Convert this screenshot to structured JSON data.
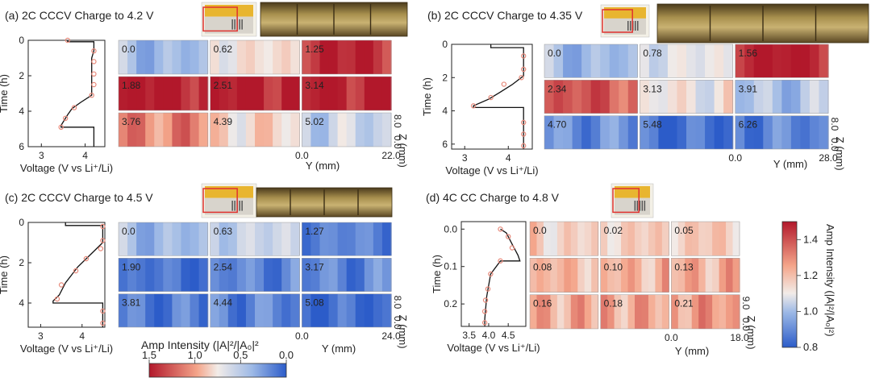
{
  "chart_data": [
    {
      "type": "heatmap",
      "id": "a",
      "title": "(a) 2C CCCV Charge to 4.2 V",
      "curve_ylabel": "Time (h)",
      "curve_xlabel": "Voltage (V vs Li⁺/Li)",
      "curve_xticks": [
        "3",
        "4"
      ],
      "curve_yticks": [
        "0",
        "2",
        "4",
        "6"
      ],
      "curve_xlim": [
        2.7,
        4.45
      ],
      "curve_ylim": [
        0,
        6
      ],
      "curve": [
        [
          3.6,
          0.0
        ],
        [
          3.6,
          0.08
        ],
        [
          4.2,
          0.08
        ],
        [
          4.2,
          0.6
        ],
        [
          4.15,
          1.0
        ],
        [
          4.15,
          3.1
        ],
        [
          3.9,
          3.5
        ],
        [
          3.7,
          3.85
        ],
        [
          3.6,
          4.2
        ],
        [
          3.45,
          4.8
        ],
        [
          3.45,
          4.9
        ],
        [
          4.2,
          4.9
        ],
        [
          4.2,
          6.0
        ]
      ],
      "markers": [
        [
          3.6,
          0.0
        ],
        [
          4.2,
          0.6
        ],
        [
          4.2,
          1.2
        ],
        [
          4.2,
          1.9
        ],
        [
          4.2,
          2.5
        ],
        [
          4.15,
          3.1
        ],
        [
          3.75,
          3.8
        ],
        [
          3.55,
          4.4
        ],
        [
          3.45,
          4.9
        ]
      ],
      "times": [
        "0.0",
        "0.62",
        "1.25",
        "1.88",
        "2.51",
        "3.14",
        "3.76",
        "4.39",
        "5.02"
      ],
      "levels": [
        0.45,
        0.8,
        1.45,
        1.5,
        1.5,
        1.5,
        1.15,
        0.85,
        0.6
      ],
      "ylabel": "Y (mm)",
      "zlabel": "Z (mm)",
      "y_range": [
        "0.0",
        "22.0"
      ],
      "z_range": [
        "0.0",
        "8.0"
      ],
      "show_photo": true,
      "photo_strip": true
    },
    {
      "type": "heatmap",
      "id": "b",
      "title": "(b) 2C CCCV Charge to 4.35 V",
      "curve_ylabel": "Time (h)",
      "curve_xlabel": "Voltage (V vs Li⁺/Li)",
      "curve_xticks": [
        "3",
        "4"
      ],
      "curve_yticks": [
        "0",
        "2",
        "4",
        "6"
      ],
      "curve_xlim": [
        2.7,
        4.55
      ],
      "curve_ylim": [
        0,
        6.3
      ],
      "curve": [
        [
          3.6,
          0.0
        ],
        [
          3.6,
          0.2
        ],
        [
          4.35,
          0.2
        ],
        [
          4.35,
          1.9
        ],
        [
          4.1,
          2.4
        ],
        [
          3.8,
          2.9
        ],
        [
          3.55,
          3.3
        ],
        [
          3.2,
          3.7
        ],
        [
          3.2,
          3.8
        ],
        [
          4.35,
          3.8
        ],
        [
          4.35,
          6.3
        ]
      ],
      "markers": [
        [
          4.35,
          0.7
        ],
        [
          4.35,
          1.5
        ],
        [
          4.3,
          2.0
        ],
        [
          3.9,
          2.4
        ],
        [
          3.6,
          3.2
        ],
        [
          3.2,
          3.7
        ],
        [
          4.35,
          4.7
        ],
        [
          4.35,
          5.4
        ],
        [
          4.35,
          6.1
        ]
      ],
      "times": [
        "0.0",
        "0.78",
        "1.56",
        "2.34",
        "3.13",
        "3.91",
        "4.70",
        "5.48",
        "6.26"
      ],
      "levels": [
        0.45,
        0.7,
        1.5,
        1.3,
        0.75,
        0.5,
        0.25,
        0.1,
        0.2
      ],
      "ylabel": "Y (mm)",
      "zlabel": "Z (mm)",
      "y_range": [
        "0.0",
        "28.0"
      ],
      "z_range": [
        "0.0",
        "8.0"
      ],
      "show_photo": true,
      "photo_strip": true
    },
    {
      "type": "heatmap",
      "id": "c",
      "title": "(c) 2C CCCV Charge to 4.5 V",
      "curve_ylabel": "Time (h)",
      "curve_xlabel": "Voltage (V vs Li⁺/Li)",
      "curve_xticks": [
        "3",
        "4"
      ],
      "curve_yticks": [
        "0",
        "2",
        "4"
      ],
      "curve_xlim": [
        2.7,
        4.55
      ],
      "curve_ylim": [
        0,
        5.2
      ],
      "curve": [
        [
          3.6,
          0.0
        ],
        [
          3.6,
          0.15
        ],
        [
          4.5,
          0.15
        ],
        [
          4.5,
          1.0
        ],
        [
          4.3,
          1.4
        ],
        [
          3.9,
          2.2
        ],
        [
          3.6,
          3.0
        ],
        [
          3.45,
          3.6
        ],
        [
          3.3,
          3.9
        ],
        [
          3.3,
          4.0
        ],
        [
          4.5,
          4.0
        ],
        [
          4.5,
          5.2
        ]
      ],
      "markers": [
        [
          4.5,
          0.2
        ],
        [
          4.5,
          0.9
        ],
        [
          4.45,
          1.3
        ],
        [
          4.1,
          1.8
        ],
        [
          3.85,
          2.4
        ],
        [
          3.5,
          3.1
        ],
        [
          3.4,
          3.8
        ],
        [
          4.5,
          4.4
        ],
        [
          4.5,
          5.0
        ]
      ],
      "times": [
        "0.0",
        "0.63",
        "1.27",
        "1.90",
        "2.54",
        "3.17",
        "3.81",
        "4.44",
        "5.08"
      ],
      "levels": [
        0.45,
        0.6,
        0.2,
        0.12,
        0.2,
        0.2,
        0.15,
        0.2,
        0.08
      ],
      "ylabel": "Y (mm)",
      "zlabel": "Z (mm)",
      "y_range": [
        "0.0",
        "24.0"
      ],
      "z_range": [
        "0.0",
        "8.0"
      ],
      "show_photo": true,
      "photo_strip": true
    },
    {
      "type": "heatmap",
      "id": "d",
      "title": "(d) 4C CC Charge to 4.8 V",
      "curve_ylabel": "Time (h)",
      "curve_xlabel": "Voltage (V vs Li⁺/Li)",
      "curve_xticks": [
        "3.5",
        "4.0",
        "4.5"
      ],
      "curve_yticks": [
        "0.0",
        "0.1",
        "0.2"
      ],
      "curve_xlim": [
        3.3,
        4.95
      ],
      "curve_ylim": [
        -0.02,
        0.26
      ],
      "curve": [
        [
          4.3,
          0.0
        ],
        [
          4.45,
          0.01
        ],
        [
          4.6,
          0.04
        ],
        [
          4.75,
          0.07
        ],
        [
          4.8,
          0.085
        ],
        [
          4.3,
          0.085
        ],
        [
          4.05,
          0.12
        ],
        [
          3.95,
          0.18
        ],
        [
          3.9,
          0.24
        ],
        [
          3.9,
          0.26
        ]
      ],
      "markers": [
        [
          4.3,
          0.0
        ],
        [
          4.5,
          0.02
        ],
        [
          4.6,
          0.05
        ],
        [
          4.3,
          0.085
        ],
        [
          4.05,
          0.12
        ],
        [
          3.98,
          0.16
        ],
        [
          3.92,
          0.19
        ],
        [
          3.9,
          0.22
        ],
        [
          3.9,
          0.25
        ]
      ],
      "times": [
        "0.0",
        "0.02",
        "0.05",
        "0.08",
        "0.10",
        "0.13",
        "0.16",
        "0.18",
        "0.21"
      ],
      "levels": [
        0.85,
        0.88,
        0.9,
        0.97,
        0.98,
        1.0,
        1.02,
        1.03,
        1.08
      ],
      "ylabel": "Y (mm)",
      "zlabel": "Z (mm)",
      "y_range": [
        "0.0",
        "18.0"
      ],
      "z_range": [
        "0.0",
        "9.0"
      ],
      "show_photo": true,
      "photo_strip": false
    }
  ],
  "colorbar_horizontal": {
    "label": "Amp Intensity (|A|²/|A₀|²",
    "ticks": [
      "1.5",
      "1.0",
      "0.5",
      "0.0"
    ],
    "range": [
      1.5,
      0.0
    ]
  },
  "colorbar_vertical": {
    "label": "Amp Intensity (|A|²/|A₀|²)",
    "ticks": [
      "1.4",
      "1.2",
      "1.0",
      "0.8"
    ],
    "range": [
      0.8,
      1.5
    ]
  },
  "colors": {
    "high": "#b2182b",
    "mid": "#f2ece8",
    "low": "#2c5cc9",
    "curve": "#111111",
    "marker": "#e8897a"
  }
}
